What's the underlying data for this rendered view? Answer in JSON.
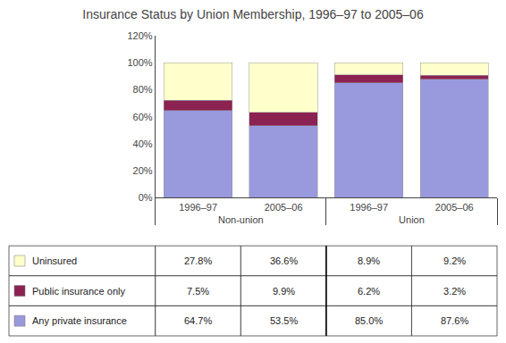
{
  "chart_data": {
    "type": "bar",
    "stacked": true,
    "grid": false,
    "title": "Insurance Status by Union Membership, 1996–97 to 2005–06",
    "categories": [
      "1996–97",
      "2005–06",
      "1996–97",
      "2005–06"
    ],
    "groups": [
      "Non-union",
      "Non-union",
      "Union",
      "Union"
    ],
    "series": [
      {
        "name": "Any private insurance",
        "color": "#9999dd",
        "values": [
          64.7,
          53.5,
          85.0,
          87.6
        ],
        "value_labels": [
          "64.7%",
          "53.5%",
          "85.0%",
          "87.6%"
        ]
      },
      {
        "name": "Public insurance only",
        "color": "#8b2252",
        "values": [
          7.5,
          9.9,
          6.2,
          3.2
        ],
        "value_labels": [
          "7.5%",
          "9.9%",
          "6.2%",
          "3.2%"
        ]
      },
      {
        "name": "Uninsured",
        "color": "#ffffcc",
        "values": [
          27.8,
          36.6,
          8.9,
          9.2
        ],
        "value_labels": [
          "27.8%",
          "36.6%",
          "8.9%",
          "9.2%"
        ]
      }
    ],
    "ylim": [
      0,
      120
    ],
    "yticks": [
      {
        "value": 0,
        "label": "0%"
      },
      {
        "value": 20,
        "label": "20%"
      },
      {
        "value": 40,
        "label": "40%"
      },
      {
        "value": 60,
        "label": "60%"
      },
      {
        "value": 80,
        "label": "80%"
      },
      {
        "value": 100,
        "label": "100%"
      },
      {
        "value": 120,
        "label": "120%"
      }
    ]
  }
}
